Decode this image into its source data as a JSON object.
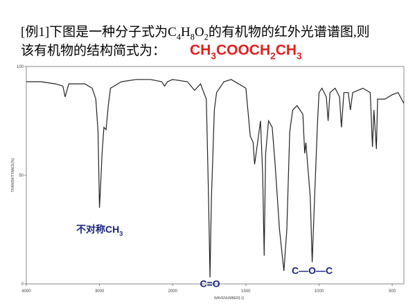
{
  "chart_data": {
    "type": "line",
    "title": [
      "[例1]下图是一种分子式为C",
      "4",
      "H",
      "8",
      "O",
      "2",
      "的有机物的红外光谱谱图,则"
    ],
    "subtitle": "该有机物的结构简式为：",
    "answer": [
      "CH",
      "3",
      "COOCH",
      "2",
      "CH",
      "3"
    ],
    "x_label": "WAVENUMBER[-1]",
    "y_label": "TRANSMITTANCE[%]",
    "xlim": [
      4000,
      420
    ],
    "x_scale_break": 2000,
    "xticks": [
      4000,
      3000,
      2000,
      1500,
      1000,
      500
    ],
    "ylim": [
      0,
      100
    ],
    "yticks": [
      0,
      50,
      100
    ],
    "color": "#222222",
    "x": [
      4000,
      3800,
      3600,
      3500,
      3470,
      3420,
      3200,
      3100,
      3050,
      3020,
      3000,
      2985,
      2965,
      2940,
      2910,
      2880,
      2850,
      2700,
      2500,
      2300,
      2150,
      2110,
      2070,
      2000,
      1900,
      1850,
      1810,
      1770,
      1755,
      1745,
      1735,
      1715,
      1700,
      1650,
      1600,
      1500,
      1470,
      1450,
      1440,
      1420,
      1400,
      1385,
      1375,
      1365,
      1345,
      1320,
      1300,
      1270,
      1240,
      1220,
      1200,
      1180,
      1150,
      1110,
      1098,
      1090,
      1060,
      1047,
      1030,
      1010,
      1000,
      980,
      950,
      938,
      925,
      890,
      860,
      847,
      830,
      800,
      786,
      770,
      700,
      650,
      635,
      625,
      608,
      600,
      550,
      500,
      460,
      420
    ],
    "values": [
      93,
      93,
      92,
      91,
      86,
      92,
      92,
      90,
      85,
      70,
      35,
      45,
      60,
      72,
      71,
      82,
      90,
      93,
      94,
      94,
      93,
      91,
      93,
      94,
      93,
      89,
      92,
      85,
      40,
      3,
      40,
      80,
      88,
      93,
      94,
      90,
      68,
      65,
      55,
      65,
      75,
      50,
      13,
      60,
      75,
      72,
      55,
      25,
      6,
      25,
      70,
      80,
      82,
      78,
      60,
      65,
      40,
      10,
      40,
      75,
      88,
      90,
      86,
      75,
      88,
      90,
      86,
      72,
      88,
      88,
      80,
      88,
      90,
      88,
      63,
      80,
      62,
      85,
      85,
      87,
      88,
      83
    ],
    "annotations": [
      {
        "text": [
          "不对称CH",
          "3"
        ],
        "x": 3000,
        "y": 28,
        "color": "#1a237e"
      },
      {
        "text": [
          "C=O"
        ],
        "x": 1745,
        "y": 3,
        "color": "#1a237e"
      },
      {
        "text": [
          "C—O—C"
        ],
        "x": 1047,
        "y": 9,
        "color": "#1a237e"
      }
    ]
  }
}
